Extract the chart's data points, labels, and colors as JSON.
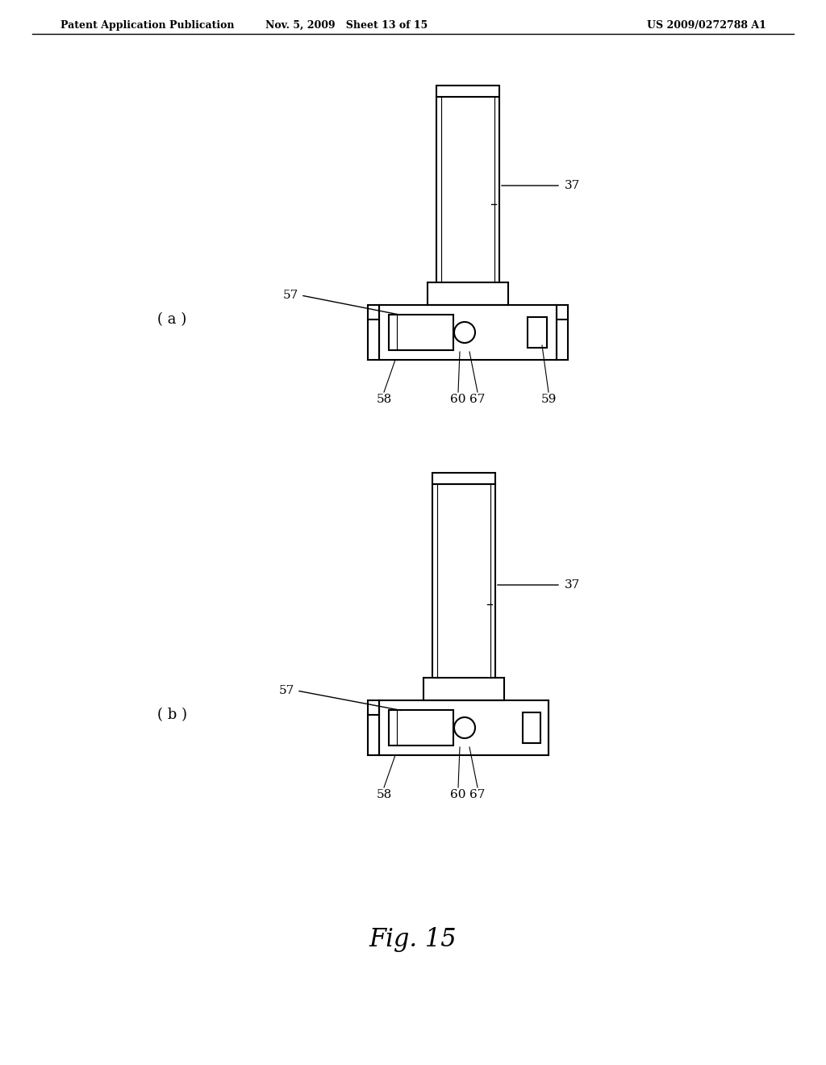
{
  "bg_color": "#ffffff",
  "header_left": "Patent Application Publication",
  "header_mid": "Nov. 5, 2009   Sheet 13 of 15",
  "header_right": "US 2009/0272788 A1",
  "fig_label": "Fig. 15",
  "diagram_a_label": "( a )",
  "diagram_b_label": "( b )",
  "line_color": "#000000",
  "line_width": 1.5
}
